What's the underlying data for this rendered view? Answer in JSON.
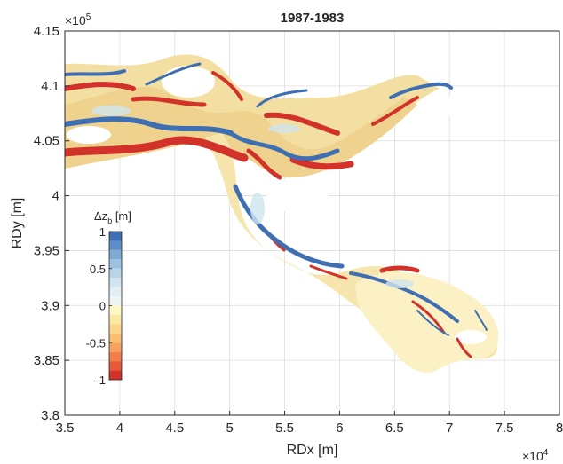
{
  "chart_data": {
    "type": "heatmap",
    "title": "1987-1983",
    "xlabel": "RDx [m]",
    "ylabel": "RDy [m]",
    "x_exponent_label": "×10",
    "x_exponent_power": "4",
    "y_exponent_label": "×10",
    "y_exponent_power": "5",
    "xlim": [
      35000,
      80000
    ],
    "ylim": [
      380000,
      415000
    ],
    "xticks": [
      35000,
      40000,
      45000,
      50000,
      55000,
      60000,
      65000,
      70000,
      75000,
      80000
    ],
    "xtick_labels": [
      "3.5",
      "4",
      "4.5",
      "5",
      "5.5",
      "6",
      "6.5",
      "7",
      "7.5",
      "8"
    ],
    "yticks": [
      380000,
      385000,
      390000,
      395000,
      400000,
      405000,
      410000,
      415000
    ],
    "ytick_labels": [
      "3.8",
      "3.85",
      "3.9",
      "3.95",
      "4",
      "4.05",
      "4.1",
      "4.15"
    ],
    "grid": true,
    "colorbar": {
      "label_main": "Δz",
      "label_sub": "b",
      "label_unit": " [m]",
      "location": "inside-left",
      "min": -1,
      "max": 1,
      "tick_values": [
        1,
        0.5,
        0,
        -0.5,
        -1
      ],
      "tick_labels": [
        "1",
        "0.5",
        "0",
        "-0.5",
        "-1"
      ],
      "levels": [
        {
          "from": 0.875,
          "to": 1.0,
          "color": "#3f6fb3"
        },
        {
          "from": 0.75,
          "to": 0.875,
          "color": "#5b8ec6"
        },
        {
          "from": 0.625,
          "to": 0.75,
          "color": "#7eaad3"
        },
        {
          "from": 0.5,
          "to": 0.625,
          "color": "#9cc2df"
        },
        {
          "from": 0.375,
          "to": 0.5,
          "color": "#b6d5e8"
        },
        {
          "from": 0.25,
          "to": 0.375,
          "color": "#cfe5ef"
        },
        {
          "from": 0.125,
          "to": 0.25,
          "color": "#e1eef4"
        },
        {
          "from": 0.0,
          "to": 0.125,
          "color": "#eef5f5"
        },
        {
          "from": -0.125,
          "to": 0.0,
          "color": "#fff8c4"
        },
        {
          "from": -0.25,
          "to": -0.125,
          "color": "#fde9a6"
        },
        {
          "from": -0.375,
          "to": -0.25,
          "color": "#fcd58a"
        },
        {
          "from": -0.5,
          "to": -0.375,
          "color": "#f9be72"
        },
        {
          "from": -0.625,
          "to": -0.5,
          "color": "#f6a25e"
        },
        {
          "from": -0.75,
          "to": -0.625,
          "color": "#f07f4b"
        },
        {
          "from": -0.875,
          "to": -0.75,
          "color": "#e65a3a"
        },
        {
          "from": -1.0,
          "to": -0.875,
          "color": "#d3322b"
        }
      ]
    },
    "field_note_colors": {
      "sediment_base": "#f7e8b0",
      "erosion_strong": "#d3322b",
      "deposition_strong": "#3f6fb3",
      "neutral_light": "#e6f0f3"
    }
  }
}
